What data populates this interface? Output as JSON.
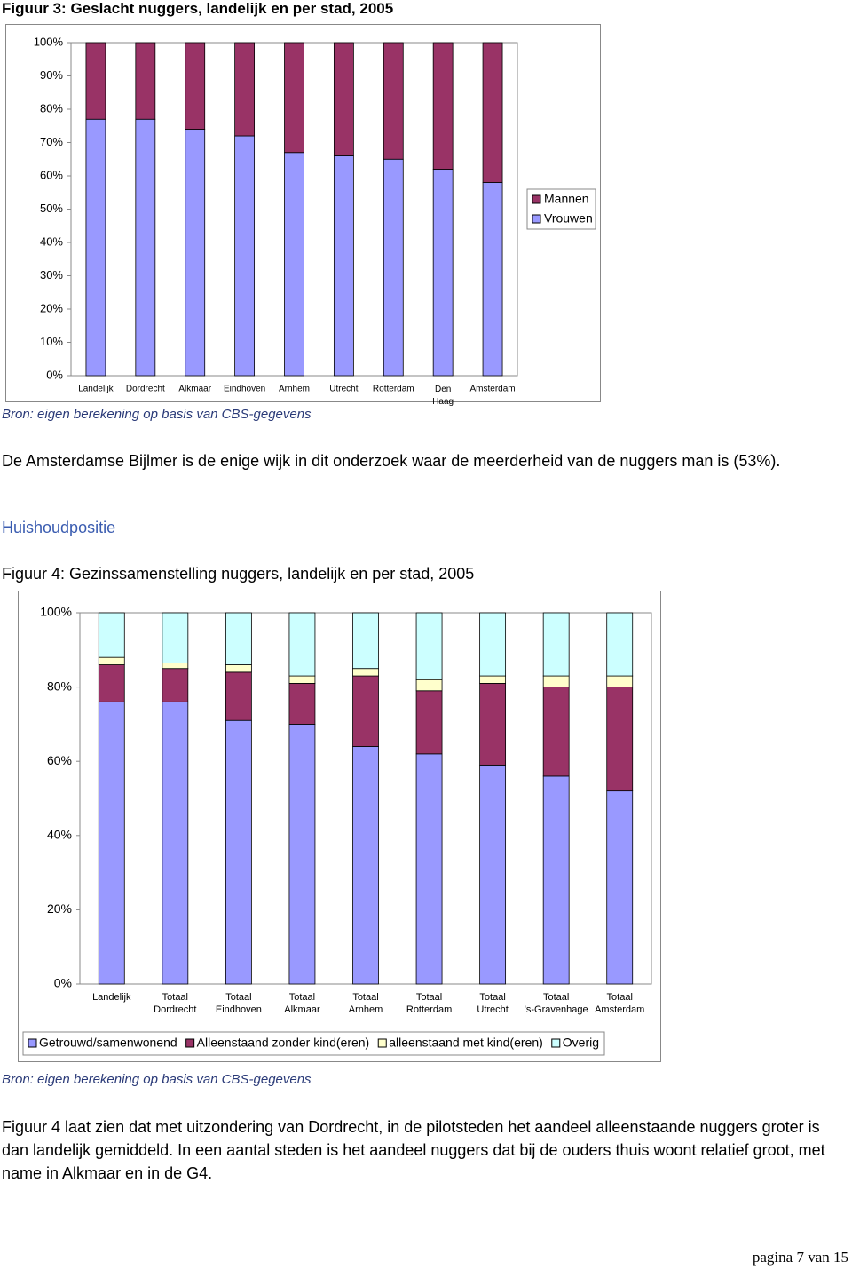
{
  "chart_data": [
    {
      "type": "stacked-bar",
      "title": "Figuur 3: Geslacht nuggers, landelijk en per stad, 2005",
      "categories": [
        "Landelijk",
        "Dordrecht",
        "Alkmaar",
        "Eindhoven",
        "Arnhem",
        "Utrecht",
        "Rotterdam",
        "Den Haag",
        "Amsterdam"
      ],
      "series": [
        {
          "name": "Vrouwen",
          "color": "#9999ff",
          "values": [
            77,
            77,
            74,
            72,
            67,
            66,
            65,
            62,
            58
          ]
        },
        {
          "name": "Mannen",
          "color": "#993366",
          "values": [
            23,
            23,
            26,
            28,
            33,
            34,
            35,
            38,
            42
          ]
        }
      ],
      "ylim": [
        0,
        100
      ],
      "yticks": [
        {
          "value": 0,
          "label": "0%"
        },
        {
          "value": 10,
          "label": "10%"
        },
        {
          "value": 20,
          "label": "20%"
        },
        {
          "value": 30,
          "label": "30%"
        },
        {
          "value": 40,
          "label": "40%"
        },
        {
          "value": 50,
          "label": "50%"
        },
        {
          "value": 60,
          "label": "60%"
        },
        {
          "value": 70,
          "label": "70%"
        },
        {
          "value": 80,
          "label": "80%"
        },
        {
          "value": 90,
          "label": "90%"
        },
        {
          "value": 100,
          "label": "100%"
        }
      ],
      "legend": "right",
      "source": "Bron: eigen berekening op basis van CBS-gegevens"
    },
    {
      "type": "stacked-bar",
      "title": "Figuur 4: Gezinssamenstelling nuggers, landelijk en per stad, 2005",
      "categories": [
        "Landelijk",
        "Totaal Dordrecht",
        "Totaal Eindhoven",
        "Totaal Alkmaar",
        "Totaal Arnhem",
        "Totaal Rotterdam",
        "Totaal Utrecht",
        "Totaal 's-Gravenhage",
        "Totaal Amsterdam"
      ],
      "series": [
        {
          "name": "Getrouwd/samenwonend",
          "color": "#9999ff",
          "values": [
            76,
            76,
            71,
            70,
            64,
            62,
            59,
            56,
            52
          ]
        },
        {
          "name": "Alleenstaand zonder kind(eren)",
          "color": "#993366",
          "values": [
            10,
            9,
            13,
            11,
            19,
            17,
            22,
            24,
            28
          ]
        },
        {
          "name": "alleenstaand met kind(eren)",
          "color": "#ffffcc",
          "values": [
            2,
            1.5,
            2,
            2,
            2,
            3,
            2,
            3,
            3
          ]
        },
        {
          "name": "Overig",
          "color": "#ccffff",
          "values": [
            12,
            13.5,
            14,
            17,
            15,
            18,
            17,
            17,
            17
          ]
        }
      ],
      "ylim": [
        0,
        100
      ],
      "yticks": [
        {
          "value": 0,
          "label": "0%"
        },
        {
          "value": 20,
          "label": "20%"
        },
        {
          "value": 40,
          "label": "40%"
        },
        {
          "value": 60,
          "label": "60%"
        },
        {
          "value": 80,
          "label": "80%"
        },
        {
          "value": 100,
          "label": "100%"
        }
      ],
      "legend": "bottom",
      "source": "Bron: eigen berekening op basis van CBS-gegevens"
    }
  ],
  "document": {
    "paragraph1": "De Amsterdamse Bijlmer is de enige wijk in dit onderzoek waar de meerderheid van de nuggers man is (53%).",
    "heading": "Huishoudpositie",
    "paragraph2": "Figuur 4 laat zien dat met uitzondering van Dordrecht, in de pilotsteden het aandeel alleenstaande nuggers groter is dan landelijk gemiddeld. In een aantal steden is het aandeel nuggers dat bij de ouders thuis woont relatief groot, met name in Alkmaar en in de G4.",
    "footer": "pagina 7 van 15"
  }
}
